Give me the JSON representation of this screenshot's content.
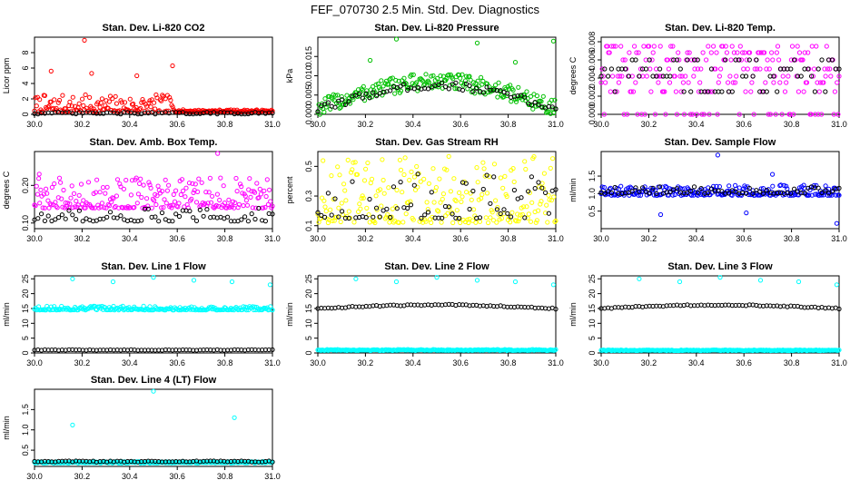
{
  "figure_title": "FEF_070730  2.5 Min. Std. Dev. Diagnostics",
  "chart_data": [
    {
      "type": "scatter",
      "title": "Stan. Dev. Li-820 CO2",
      "ylabel": "Licor ppm",
      "xlim": [
        30.0,
        31.0
      ],
      "ylim": [
        0,
        10
      ],
      "yticks": [
        0,
        2,
        4,
        6,
        8
      ],
      "xticks": [
        "30.0",
        "30.2",
        "30.4",
        "30.6",
        "30.8",
        "31.0"
      ],
      "series": [
        {
          "color": "#ff0000",
          "pattern": "noisy",
          "base": 0.35,
          "spread": 2.2,
          "spike_end": 30.6,
          "tail": 0.25,
          "outliers": [
            [
              30.21,
              9.6
            ],
            [
              30.07,
              5.6
            ],
            [
              30.24,
              5.3
            ],
            [
              30.58,
              6.3
            ],
            [
              30.43,
              5.0
            ]
          ]
        },
        {
          "color": "#000000",
          "pattern": "flat",
          "base": 0.15,
          "spread": 0.25
        }
      ]
    },
    {
      "type": "scatter",
      "title": "Stan. Dev. Li-820 Pressure",
      "ylabel": "kPa",
      "xlim": [
        30.0,
        31.0
      ],
      "ylim": [
        0,
        0.02
      ],
      "yticks": [
        0.0,
        0.005,
        0.01,
        0.015
      ],
      "ytick_labels": [
        "0.000",
        "0.005",
        "0.010",
        "0.015"
      ],
      "xticks": [
        "30.0",
        "30.2",
        "30.4",
        "30.6",
        "30.8",
        "31.0"
      ],
      "series": [
        {
          "color": "#00c000",
          "pattern": "hump",
          "base": 0.0015,
          "peak": 0.0085,
          "spread": 0.0045,
          "outliers": [
            [
              30.33,
              0.0195
            ],
            [
              30.67,
              0.0185
            ],
            [
              30.99,
              0.019
            ],
            [
              30.83,
              0.0135
            ],
            [
              30.22,
              0.014
            ]
          ]
        },
        {
          "color": "#000000",
          "pattern": "hump",
          "base": 0.0012,
          "peak": 0.0075,
          "spread": 0.002
        }
      ]
    },
    {
      "type": "scatter",
      "title": "Stan. Dev. Li-820 Temp.",
      "ylabel": "degrees C",
      "xlim": [
        30.0,
        31.0
      ],
      "ylim": [
        0,
        0.0085
      ],
      "yticks": [
        0.0,
        0.002,
        0.004,
        0.006,
        0.008
      ],
      "ytick_labels": [
        "0.000",
        "0.002",
        "0.004",
        "0.006",
        "0.008"
      ],
      "xticks": [
        "30.0",
        "30.2",
        "30.4",
        "30.6",
        "30.8",
        "31.0"
      ],
      "series": [
        {
          "color": "#ff00ff",
          "pattern": "quantized",
          "levels": [
            0.0,
            0.0025,
            0.0035,
            0.0042,
            0.005,
            0.006,
            0.0068,
            0.0075
          ]
        },
        {
          "color": "#000000",
          "pattern": "quantized",
          "levels": [
            0.0025,
            0.0042,
            0.005,
            0.006
          ]
        }
      ]
    },
    {
      "type": "scatter",
      "title": "Stan. Dev. Amb. Box Temp.",
      "ylabel": "degrees C",
      "xlim": [
        30.0,
        31.0
      ],
      "ylim": [
        0.085,
        0.29
      ],
      "yticks": [
        0.1,
        0.2
      ],
      "ytick_labels": [
        "0.10",
        "0.20"
      ],
      "xticks": [
        "30.0",
        "30.2",
        "30.4",
        "30.6",
        "30.8",
        "31.0"
      ],
      "series": [
        {
          "color": "#ff00ff",
          "pattern": "noisy",
          "base": 0.14,
          "spread": 0.08,
          "outliers": [
            [
              30.77,
              0.285
            ],
            [
              30.02,
              0.23
            ]
          ]
        },
        {
          "color": "#000000",
          "pattern": "noisy",
          "base": 0.105,
          "spread": 0.035
        }
      ]
    },
    {
      "type": "scatter",
      "title": "Stan. Dev. Gas Stream RH",
      "ylabel": "percent",
      "xlim": [
        30.0,
        31.0
      ],
      "ylim": [
        0.08,
        0.6
      ],
      "yticks": [
        0.1,
        0.3,
        0.5
      ],
      "ytick_labels": [
        "0.1",
        "0.3",
        "0.5"
      ],
      "xticks": [
        "30.0",
        "30.2",
        "30.4",
        "30.6",
        "30.8",
        "31.0"
      ],
      "series": [
        {
          "color": "#ffff00",
          "pattern": "noisy",
          "base": 0.12,
          "spread": 0.45
        },
        {
          "color": "#000000",
          "pattern": "noisy",
          "base": 0.15,
          "spread": 0.3
        }
      ]
    },
    {
      "type": "scatter",
      "title": "Stan. Dev. Sample Flow",
      "ylabel": "ml/min",
      "xlim": [
        30.0,
        31.0
      ],
      "ylim": [
        0.0,
        2.2
      ],
      "yticks": [
        0.5,
        1.0,
        1.5
      ],
      "ytick_labels": [
        "0.5",
        "1.0",
        "1.5"
      ],
      "xticks": [
        "30.0",
        "30.2",
        "30.4",
        "30.6",
        "30.8",
        "31.0"
      ],
      "series": [
        {
          "color": "#0000ff",
          "pattern": "noisy",
          "base": 0.95,
          "spread": 0.3,
          "outliers": [
            [
              30.49,
              2.1
            ],
            [
              30.99,
              0.15
            ],
            [
              30.61,
              0.45
            ],
            [
              30.72,
              1.55
            ],
            [
              30.25,
              0.4
            ]
          ]
        },
        {
          "color": "#000000",
          "pattern": "noisy",
          "base": 1.0,
          "spread": 0.2
        }
      ]
    },
    {
      "type": "scatter",
      "title": "Stan. Dev. Line 1 Flow",
      "ylabel": "ml/min",
      "xlim": [
        30.0,
        31.0
      ],
      "ylim": [
        0,
        26
      ],
      "yticks": [
        0,
        5,
        10,
        15,
        20,
        25
      ],
      "xticks": [
        "30.0",
        "30.2",
        "30.4",
        "30.6",
        "30.8",
        "31.0"
      ],
      "series": [
        {
          "color": "#00ffff",
          "pattern": "noisy",
          "base": 14.5,
          "spread": 1.3,
          "outliers": [
            [
              30.16,
              25
            ],
            [
              30.33,
              24
            ],
            [
              30.5,
              25.5
            ],
            [
              30.67,
              24.5
            ],
            [
              30.83,
              24
            ],
            [
              30.99,
              23
            ]
          ]
        },
        {
          "color": "#000000",
          "pattern": "flat",
          "base": 1.0,
          "spread": 0.2
        }
      ]
    },
    {
      "type": "scatter",
      "title": "Stan. Dev. Line 2 Flow",
      "ylabel": "ml/min",
      "xlim": [
        30.0,
        31.0
      ],
      "ylim": [
        0,
        26
      ],
      "yticks": [
        0,
        5,
        10,
        15,
        20,
        25
      ],
      "xticks": [
        "30.0",
        "30.2",
        "30.4",
        "30.6",
        "30.8",
        "31.0"
      ],
      "series": [
        {
          "color": "#00ffff",
          "pattern": "flat",
          "base": 1.0,
          "spread": 0.4,
          "outliers": [
            [
              30.16,
              25
            ],
            [
              30.33,
              24
            ],
            [
              30.5,
              25.5
            ],
            [
              30.67,
              24.5
            ],
            [
              30.83,
              24
            ],
            [
              30.99,
              23
            ]
          ]
        },
        {
          "color": "#000000",
          "pattern": "hump",
          "base": 15.0,
          "peak": 16.2,
          "spread": 0.4
        }
      ]
    },
    {
      "type": "scatter",
      "title": "Stan. Dev. Line 3 Flow",
      "ylabel": "ml/min",
      "xlim": [
        30.0,
        31.0
      ],
      "ylim": [
        0,
        26
      ],
      "yticks": [
        0,
        5,
        10,
        15,
        20,
        25
      ],
      "xticks": [
        "30.0",
        "30.2",
        "30.4",
        "30.6",
        "30.8",
        "31.0"
      ],
      "series": [
        {
          "color": "#00ffff",
          "pattern": "flat",
          "base": 0.9,
          "spread": 0.3,
          "outliers": [
            [
              30.16,
              25
            ],
            [
              30.33,
              24
            ],
            [
              30.5,
              25.5
            ],
            [
              30.67,
              24.5
            ],
            [
              30.83,
              24
            ],
            [
              30.99,
              23
            ]
          ]
        },
        {
          "color": "#000000",
          "pattern": "hump",
          "base": 15.0,
          "peak": 16.2,
          "spread": 0.4
        }
      ]
    },
    {
      "type": "scatter",
      "title": "Stan. Dev. Line 4 (LT) Flow",
      "ylabel": "ml/min",
      "xlim": [
        30.0,
        31.0
      ],
      "ylim": [
        0.1,
        2.0
      ],
      "yticks": [
        0.5,
        1.0,
        1.5
      ],
      "ytick_labels": [
        "0.5",
        "1.0",
        "1.5"
      ],
      "xticks": [
        "30.0",
        "30.2",
        "30.4",
        "30.6",
        "30.8",
        "31.0"
      ],
      "series": [
        {
          "color": "#00ffff",
          "pattern": "flat",
          "base": 0.2,
          "spread": 0.04,
          "outliers": [
            [
              30.5,
              1.95
            ],
            [
              30.84,
              1.3
            ],
            [
              30.16,
              1.12
            ]
          ]
        },
        {
          "color": "#000000",
          "pattern": "flat",
          "base": 0.22,
          "spread": 0.03
        }
      ]
    }
  ]
}
